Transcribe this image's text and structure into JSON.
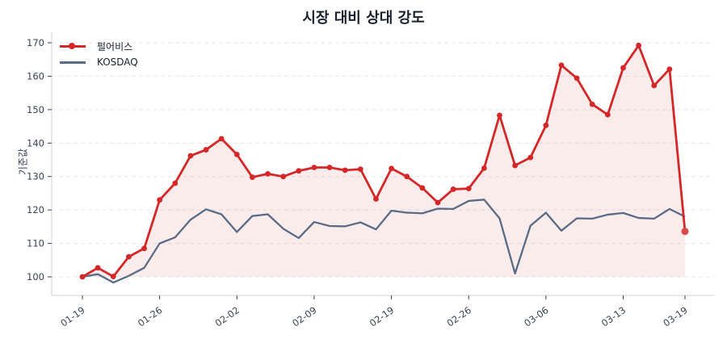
{
  "chart_data": {
    "type": "line",
    "title": "시장 대비 상대 강도",
    "xlabel": "",
    "ylabel": "기준값",
    "ylim": [
      95,
      173
    ],
    "yticks": [
      100,
      110,
      120,
      130,
      140,
      150,
      160,
      170
    ],
    "xtick_labels": [
      "01-19",
      "01-26",
      "02-02",
      "02-09",
      "02-19",
      "02-26",
      "03-06",
      "03-13",
      "03-19"
    ],
    "xtick_indices": [
      0,
      5,
      10,
      15,
      20,
      25,
      30,
      35,
      39
    ],
    "grid": true,
    "legend_position": "upper left",
    "series": [
      {
        "name": "펄어비스",
        "color": "#d62728",
        "marker": "circle",
        "fill": true,
        "values": [
          100,
          102.7,
          100.1,
          106,
          108.5,
          123,
          128,
          136.2,
          138,
          141.3,
          136.6,
          129.8,
          130.8,
          130,
          131.7,
          132.7,
          132.7,
          131.9,
          132.2,
          123.3,
          132.4,
          130,
          126.6,
          122.2,
          126.2,
          126.4,
          132.5,
          148.3,
          133.3,
          135.7,
          145.3,
          163.3,
          159.4,
          151.6,
          148.5,
          162.5,
          169.2,
          157.2,
          162.1,
          113.6
        ]
      },
      {
        "name": "KOSDAQ",
        "color": "#5a6b85",
        "marker": "none",
        "fill": false,
        "values": [
          100,
          100.8,
          98.3,
          100.3,
          102.7,
          110,
          111.8,
          117.1,
          120.2,
          118.7,
          113.4,
          118.2,
          118.7,
          114.4,
          111.6,
          116.4,
          115.2,
          115.1,
          116.3,
          114.2,
          119.8,
          119.2,
          119,
          120.4,
          120.3,
          122.7,
          123.1,
          117.5,
          101,
          115.3,
          119.2,
          113.8,
          117.5,
          117.4,
          118.6,
          119.1,
          117.6,
          117.4,
          120.3,
          118
        ]
      }
    ]
  },
  "legend": {
    "items": [
      {
        "label": "펄어비스",
        "color": "#d62728"
      },
      {
        "label": "KOSDAQ",
        "color": "#5a6b85"
      }
    ]
  }
}
